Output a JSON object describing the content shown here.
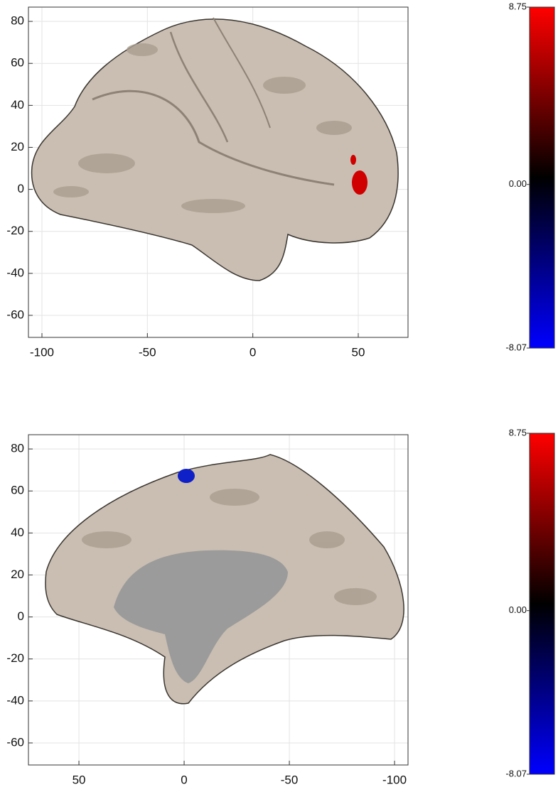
{
  "chart_data": [
    {
      "type": "image",
      "xlim": [
        -106.4,
        73.6
      ],
      "ylim": [
        -70.5,
        86.8
      ],
      "xticks": [
        -100,
        -50,
        0,
        50
      ],
      "yticks": [
        -60,
        -40,
        -20,
        0,
        20,
        40,
        60,
        80
      ],
      "grid": true,
      "colorbar": {
        "lim": [
          -8.07,
          8.75
        ],
        "ticks": [
          8.75,
          {
            "value": 0,
            "label": "0.00"
          },
          -8.07
        ]
      }
    },
    {
      "type": "image",
      "xlim": [
        74,
        -106.4
      ],
      "ylim": [
        -70.5,
        86.8
      ],
      "xticks": [
        50,
        0,
        -50,
        -100
      ],
      "yticks": [
        -60,
        -40,
        -20,
        0,
        20,
        40,
        60,
        80
      ],
      "grid": true,
      "colorbar": {
        "lim": [
          -8.07,
          8.75
        ],
        "ticks": [
          8.75,
          {
            "value": 0,
            "label": "0.00"
          },
          -8.07
        ]
      }
    }
  ]
}
